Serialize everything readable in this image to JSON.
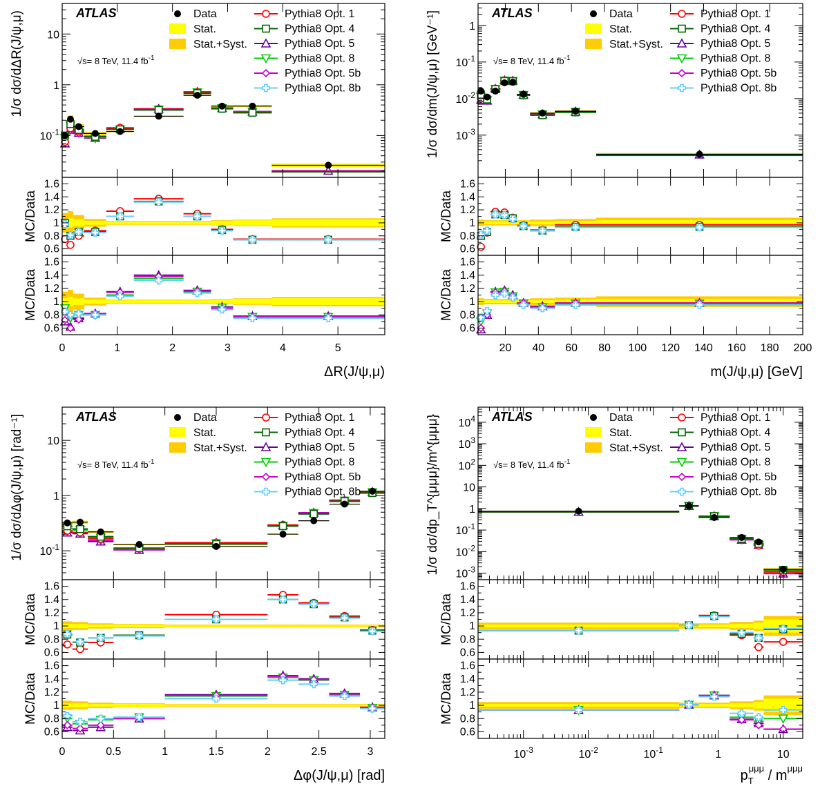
{
  "legend": {
    "atlas": "ATLAS",
    "data": "Data",
    "stat": "Stat.",
    "stat_syst": "Stat.+Syst.",
    "energy": "√s= 8 TeV, 11.4 fb",
    "energy_sup": "-1",
    "mc": [
      "Pythia8 Opt. 1",
      "Pythia8 Opt. 4",
      "Pythia8 Opt. 5",
      "Pythia8 Opt. 8",
      "Pythia8 Opt. 5b",
      "Pythia8 Opt. 8b"
    ]
  },
  "colors": {
    "data": "#000000",
    "stat": "#ffff00",
    "stat_syst": "#ffcc00",
    "opt1": "#ff0000",
    "opt4": "#006600",
    "opt5": "#660099",
    "opt8": "#00cc00",
    "opt5b": "#cc00cc",
    "opt8b": "#66ccff"
  },
  "ratio_ylabel": "MC/Data",
  "chart_data": [
    {
      "type": "scatter",
      "id": "dR",
      "xlabel": "ΔR(J/ψ,μ)",
      "ylabel": "1/σ dσ/dΔR(J/ψ,μ)",
      "xscale": "linear",
      "xlim": [
        0,
        5.85
      ],
      "xticks": [
        0,
        1,
        2,
        3,
        4,
        5
      ],
      "yscale": "log",
      "ylim": [
        0.015,
        40
      ],
      "yticks": [
        [
          0.1,
          "10^-1"
        ],
        [
          1,
          "1"
        ],
        [
          10,
          "10"
        ]
      ],
      "bins": [
        [
          0,
          0.1
        ],
        [
          0.1,
          0.2
        ],
        [
          0.2,
          0.4
        ],
        [
          0.4,
          0.8
        ],
        [
          0.8,
          1.3
        ],
        [
          1.3,
          2.2
        ],
        [
          2.2,
          2.7
        ],
        [
          2.7,
          3.1
        ],
        [
          3.1,
          3.8
        ],
        [
          3.8,
          5.85
        ]
      ],
      "data": [
        0.1,
        0.21,
        0.15,
        0.11,
        0.12,
        0.24,
        0.62,
        0.38,
        0.38,
        0.026
      ],
      "stat_rel": [
        0.05,
        0.07,
        0.05,
        0.03,
        0.02,
        0.02,
        0.02,
        0.03,
        0.04,
        0.05
      ],
      "syst_rel": [
        0.15,
        0.18,
        0.12,
        0.06,
        0.03,
        0.03,
        0.03,
        0.04,
        0.05,
        0.07
      ],
      "ratio1": {
        "Pythia8 Opt. 1": [
          0.75,
          0.66,
          0.8,
          0.88,
          1.18,
          1.37,
          1.14,
          0.9,
          0.75,
          0.75
        ],
        "Pythia8 Opt. 4": [
          1.0,
          0.8,
          0.86,
          0.86,
          1.1,
          1.33,
          1.1,
          0.89,
          0.74,
          0.74
        ],
        "Pythia8 Opt. 8b": [
          0.98,
          0.81,
          0.86,
          0.85,
          1.1,
          1.32,
          1.1,
          0.88,
          0.74,
          0.74
        ]
      },
      "ratio2": {
        "Pythia8 Opt. 5": [
          0.7,
          0.62,
          0.75,
          0.82,
          1.15,
          1.4,
          1.17,
          0.92,
          0.78,
          0.78
        ],
        "Pythia8 Opt. 8": [
          0.9,
          0.75,
          0.8,
          0.8,
          1.1,
          1.35,
          1.15,
          0.91,
          0.77,
          0.77
        ],
        "Pythia8 Opt. 5b": [
          0.72,
          0.6,
          0.73,
          0.82,
          1.14,
          1.38,
          1.16,
          0.9,
          0.77,
          0.77
        ],
        "Pythia8 Opt. 8b": [
          0.85,
          0.8,
          0.82,
          0.8,
          1.08,
          1.32,
          1.13,
          0.88,
          0.75,
          0.75
        ]
      }
    },
    {
      "type": "scatter",
      "id": "mass",
      "xlabel": "m(J/ψ,μ) [GeV]",
      "ylabel": "1/σ dσ/dm(J/ψ,μ) [GeV⁻¹]",
      "xscale": "linear",
      "xlim": [
        3.5,
        200
      ],
      "xticks": [
        20,
        40,
        60,
        80,
        100,
        120,
        140,
        160,
        180,
        200
      ],
      "yscale": "log",
      "ylim": [
        7e-05,
        4
      ],
      "yticks": [
        [
          0.001,
          "10^-3"
        ],
        [
          0.01,
          "10^-2"
        ],
        [
          0.1,
          "10^-1"
        ],
        [
          1,
          "1"
        ]
      ],
      "bins": [
        [
          3.5,
          7
        ],
        [
          7,
          11
        ],
        [
          11,
          17
        ],
        [
          17,
          22
        ],
        [
          22,
          27
        ],
        [
          27,
          35
        ],
        [
          35,
          50
        ],
        [
          50,
          75
        ],
        [
          75,
          200
        ]
      ],
      "data": [
        0.016,
        0.011,
        0.016,
        0.027,
        0.028,
        0.013,
        0.004,
        0.0045,
        0.0003
      ],
      "stat_rel": [
        0.02,
        0.02,
        0.02,
        0.02,
        0.02,
        0.02,
        0.02,
        0.03,
        0.04
      ],
      "syst_rel": [
        0.05,
        0.04,
        0.04,
        0.04,
        0.04,
        0.04,
        0.05,
        0.06,
        0.08
      ],
      "ratio1": {
        "Pythia8 Opt. 1": [
          0.63,
          0.85,
          1.17,
          1.16,
          1.08,
          0.96,
          0.89,
          0.97,
          0.97
        ],
        "Pythia8 Opt. 4": [
          0.8,
          0.86,
          1.13,
          1.12,
          1.07,
          0.95,
          0.88,
          0.94,
          0.94
        ],
        "Pythia8 Opt. 8b": [
          0.82,
          0.88,
          1.13,
          1.12,
          1.06,
          0.95,
          0.88,
          0.93,
          0.93
        ]
      },
      "ratio2": {
        "Pythia8 Opt. 5": [
          0.58,
          0.8,
          1.15,
          1.17,
          1.1,
          0.98,
          0.93,
          0.98,
          0.98
        ],
        "Pythia8 Opt. 8": [
          0.7,
          0.82,
          1.14,
          1.15,
          1.08,
          0.97,
          0.92,
          0.97,
          0.97
        ],
        "Pythia8 Opt. 5b": [
          0.6,
          0.8,
          1.14,
          1.16,
          1.09,
          0.98,
          0.92,
          0.98,
          0.98
        ],
        "Pythia8 Opt. 8b": [
          0.76,
          0.86,
          1.1,
          1.12,
          1.06,
          0.95,
          0.9,
          0.95,
          0.95
        ]
      }
    },
    {
      "type": "scatter",
      "id": "dphi",
      "xlabel": "Δφ(J/ψ,μ) [rad]",
      "ylabel": "1/σ dσ/dΔφ(J/ψ,μ) [rad⁻¹]",
      "xscale": "linear",
      "xlim": [
        0,
        3.14159
      ],
      "xticks": [
        0,
        0.5,
        1,
        1.5,
        2,
        2.5,
        3
      ],
      "yscale": "log",
      "ylim": [
        0.03,
        40
      ],
      "yticks": [
        [
          0.1,
          "10^-1"
        ],
        [
          1,
          "1"
        ],
        [
          10,
          "10"
        ]
      ],
      "bins": [
        [
          0,
          0.1
        ],
        [
          0.1,
          0.25
        ],
        [
          0.25,
          0.5
        ],
        [
          0.5,
          1
        ],
        [
          1,
          2
        ],
        [
          2,
          2.3
        ],
        [
          2.3,
          2.6
        ],
        [
          2.6,
          2.9
        ],
        [
          2.9,
          3.14159
        ]
      ],
      "data": [
        0.32,
        0.33,
        0.22,
        0.13,
        0.12,
        0.2,
        0.35,
        0.7,
        1.2
      ],
      "stat_rel": [
        0.03,
        0.03,
        0.02,
        0.02,
        0.01,
        0.01,
        0.01,
        0.01,
        0.01
      ],
      "syst_rel": [
        0.07,
        0.06,
        0.04,
        0.03,
        0.02,
        0.02,
        0.02,
        0.02,
        0.02
      ],
      "ratio1": {
        "Pythia8 Opt. 1": [
          0.72,
          0.65,
          0.75,
          0.85,
          1.17,
          1.47,
          1.35,
          1.15,
          0.94
        ],
        "Pythia8 Opt. 4": [
          0.87,
          0.75,
          0.82,
          0.86,
          1.1,
          1.4,
          1.33,
          1.13,
          0.93
        ],
        "Pythia8 Opt. 8b": [
          0.88,
          0.76,
          0.82,
          0.85,
          1.1,
          1.4,
          1.33,
          1.12,
          0.92
        ]
      },
      "ratio2": {
        "Pythia8 Opt. 5": [
          0.67,
          0.62,
          0.67,
          0.8,
          1.16,
          1.45,
          1.4,
          1.18,
          0.97
        ],
        "Pythia8 Opt. 8": [
          0.8,
          0.72,
          0.78,
          0.82,
          1.14,
          1.42,
          1.38,
          1.16,
          0.96
        ],
        "Pythia8 Opt. 5b": [
          0.7,
          0.65,
          0.7,
          0.8,
          1.15,
          1.44,
          1.39,
          1.17,
          0.97
        ],
        "Pythia8 Opt. 8b": [
          0.84,
          0.75,
          0.8,
          0.82,
          1.1,
          1.38,
          1.32,
          1.14,
          0.95
        ]
      }
    },
    {
      "type": "scatter",
      "id": "ptm",
      "xlabel": "p_T^{μμμ} / m^{μμμ}",
      "ylabel": "1/σ dσ/dp_T^{μμμ}/m^{μμμ}",
      "xscale": "log",
      "xlim": [
        0.0002,
        20
      ],
      "xticks": [
        [
          0.001,
          "10^-3"
        ],
        [
          0.01,
          "10^-2"
        ],
        [
          0.1,
          "10^-1"
        ],
        [
          1,
          "1"
        ],
        [
          10,
          "10"
        ]
      ],
      "yscale": "log",
      "ylim": [
        0.0005,
        50000
      ],
      "yticks": [
        [
          0.001,
          "10^-3"
        ],
        [
          0.01,
          "10^-2"
        ],
        [
          0.1,
          "10^-1"
        ],
        [
          1,
          "1"
        ],
        [
          10,
          "10"
        ],
        [
          100,
          "10^2"
        ],
        [
          1000,
          "10^3"
        ],
        [
          10000,
          "10^4"
        ]
      ],
      "bins": [
        [
          0.0002,
          0.25
        ],
        [
          0.25,
          0.5
        ],
        [
          0.5,
          1.5
        ],
        [
          1.5,
          3.5
        ],
        [
          3.5,
          5
        ],
        [
          5,
          20
        ]
      ],
      "data": [
        0.75,
        1.3,
        0.38,
        0.045,
        0.028,
        0.0015
      ],
      "stat_rel": [
        0.02,
        0.02,
        0.02,
        0.03,
        0.05,
        0.1
      ],
      "syst_rel": [
        0.05,
        0.04,
        0.04,
        0.06,
        0.08,
        0.15
      ],
      "ratio1": {
        "Pythia8 Opt. 1": [
          0.93,
          1.01,
          1.16,
          0.86,
          0.68,
          0.76
        ],
        "Pythia8 Opt. 4": [
          0.93,
          1.01,
          1.15,
          0.88,
          0.82,
          0.95
        ],
        "Pythia8 Opt. 8b": [
          0.93,
          1.01,
          1.14,
          0.9,
          0.82,
          0.96
        ]
      },
      "ratio2": {
        "Pythia8 Opt. 5": [
          0.93,
          1.01,
          1.15,
          0.79,
          0.73,
          0.64
        ],
        "Pythia8 Opt. 8": [
          0.93,
          1.01,
          1.15,
          0.82,
          0.76,
          0.8
        ],
        "Pythia8 Opt. 5b": [
          0.93,
          1.01,
          1.15,
          0.78,
          0.7,
          0.64
        ],
        "Pythia8 Opt. 8b": [
          0.93,
          1.01,
          1.13,
          0.88,
          0.82,
          0.93
        ]
      }
    }
  ]
}
